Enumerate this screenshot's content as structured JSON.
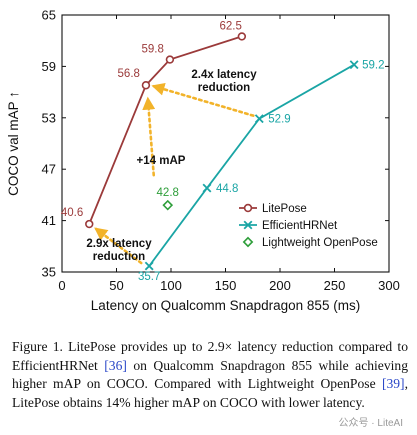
{
  "chart_data": {
    "type": "scatter",
    "xlabel": "Latency on Qualcomm Snapdragon 855 (ms)",
    "ylabel": "COCO val mAP ↑",
    "xlim": [
      0,
      300
    ],
    "ylim": [
      35,
      65
    ],
    "xticks": [
      0,
      50,
      100,
      150,
      200,
      250,
      300
    ],
    "yticks": [
      35,
      41,
      47,
      53,
      59,
      65
    ],
    "legend_position": "bottom-right",
    "series": [
      {
        "name": "LitePose",
        "color": "#9b3a3a",
        "marker": "circle",
        "connected": true,
        "x": [
          25,
          77,
          99,
          165
        ],
        "y": [
          40.6,
          56.8,
          59.8,
          62.5
        ],
        "labels": [
          "40.6",
          "56.8",
          "59.8",
          "62.5"
        ]
      },
      {
        "name": "EfficientHRNet",
        "color": "#1aa5a5",
        "marker": "x",
        "connected": true,
        "x": [
          80,
          133,
          181,
          268
        ],
        "y": [
          35.7,
          44.8,
          52.9,
          59.2
        ],
        "labels": [
          "35.7",
          "44.8",
          "52.9",
          "59.2"
        ]
      },
      {
        "name": "Lightweight OpenPose",
        "color": "#2e9e3a",
        "marker": "diamond",
        "connected": false,
        "x": [
          97
        ],
        "y": [
          42.8
        ],
        "labels": [
          "42.8"
        ]
      }
    ],
    "annotations": [
      {
        "lines": [
          "2.4x latency",
          "reduction"
        ],
        "color": "#111"
      },
      {
        "lines": [
          "+14 mAP"
        ],
        "color": "#111"
      },
      {
        "lines": [
          "2.9x latency",
          "reduction"
        ],
        "color": "#111"
      }
    ],
    "arrow_color": "#f2b32a"
  },
  "caption": {
    "prefix": "Figure 1.  LitePose provides up to 2.9× latency reduction compared to EfficientHRNet ",
    "ref1": "[36]",
    "middle": " on Qualcomm Snapdragon 855 while achieving higher mAP on COCO. Compared with Lightweight OpenPose ",
    "ref2": "[39]",
    "suffix": ", LitePose obtains 14% higher mAP on COCO with lower latency."
  },
  "watermark": "公众号 · LiteAI"
}
